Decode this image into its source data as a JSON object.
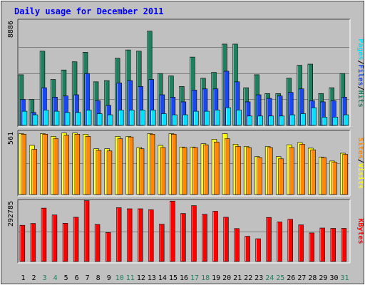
{
  "chart_data": {
    "type": "bar",
    "title": "Daily usage for December 2011",
    "days": [
      "1",
      "2",
      "3",
      "4",
      "5",
      "6",
      "7",
      "8",
      "9",
      "10",
      "11",
      "12",
      "13",
      "14",
      "15",
      "16",
      "17",
      "18",
      "19",
      "20",
      "21",
      "22",
      "23",
      "24",
      "25",
      "26",
      "27",
      "28",
      "29",
      "30",
      "31"
    ],
    "weekend_days": [
      "3",
      "4",
      "10",
      "11",
      "17",
      "18",
      "24",
      "25",
      "31"
    ],
    "panels": [
      {
        "id": "hits",
        "ymax_label": "8886",
        "ymax": 8886,
        "series": [
          {
            "name": "Hits",
            "color": "#1f7f5f",
            "values": [
              4300,
              2200,
              6300,
              3900,
              4700,
              5400,
              6200,
              3700,
              3800,
              5700,
              6400,
              6300,
              8000,
              4400,
              4200,
              3300,
              5800,
              4000,
              4500,
              6900,
              6900,
              3200,
              4300,
              2700,
              2700,
              4000,
              5100,
              5200,
              2700,
              3200,
              4400
            ]
          },
          {
            "name": "Files",
            "color": "#1848f0",
            "values": [
              2200,
              1100,
              3200,
              2400,
              2500,
              2600,
              4400,
              2100,
              1700,
              3600,
              3800,
              3300,
              3900,
              2600,
              2400,
              2000,
              3000,
              3100,
              3100,
              4600,
              3700,
              2000,
              2600,
              2300,
              2500,
              2800,
              3100,
              2100,
              2000,
              2100,
              2400
            ]
          },
          {
            "name": "Pages",
            "color": "#00e0ff",
            "values": [
              1200,
              900,
              1300,
              1200,
              1100,
              1100,
              1300,
              1000,
              900,
              1300,
              1300,
              1300,
              1300,
              1000,
              900,
              900,
              1200,
              1200,
              1300,
              1500,
              1300,
              800,
              800,
              800,
              800,
              900,
              1000,
              1500,
              700,
              700,
              900
            ]
          }
        ]
      },
      {
        "id": "visits",
        "ymax_label": "561",
        "ymax": 561,
        "series": [
          {
            "name": "Visits",
            "color": "#ffff00",
            "values": [
              545,
              440,
              545,
              520,
              550,
              550,
              540,
              410,
              410,
              520,
              520,
              420,
              545,
              440,
              545,
              425,
              425,
              455,
              495,
              545,
              450,
              430,
              340,
              430,
              340,
              445,
              465,
              415,
              335,
              300,
              370
            ]
          },
          {
            "name": "Sites",
            "color": "#ff8800",
            "values": [
              540,
              405,
              540,
              500,
              530,
              540,
              520,
              395,
              390,
              500,
              515,
              410,
              540,
              420,
              540,
              420,
              420,
              445,
              470,
              500,
              430,
              420,
              330,
              420,
              320,
              420,
              450,
              400,
              330,
              290,
              360
            ]
          }
        ]
      },
      {
        "id": "kbytes",
        "ymax_label": "292785",
        "ymax": 292785,
        "series": [
          {
            "name": "KBytes",
            "color": "#ff0000",
            "values": [
              175000,
              184000,
              258000,
              225000,
              185000,
              214000,
              294000,
              179000,
              140000,
              260000,
              255000,
              255000,
              250000,
              180000,
              292000,
              232000,
              270000,
              228000,
              243000,
              214000,
              159000,
              122000,
              110000,
              213000,
              191000,
              204000,
              177000,
              138000,
              162000,
              160000,
              160000
            ]
          }
        ]
      }
    ],
    "right_labels": {
      "top": [
        "Pages",
        "/",
        "Files",
        "/",
        "Hits"
      ],
      "mid": [
        "Sites",
        "/",
        "Visits"
      ],
      "bottom": [
        "KBytes"
      ]
    },
    "colors": {
      "background": "#c0c0c0",
      "title": "#0000ff",
      "day_label": "#000000",
      "weekend_label": "#1f7f5f",
      "separator": "#808080"
    }
  }
}
